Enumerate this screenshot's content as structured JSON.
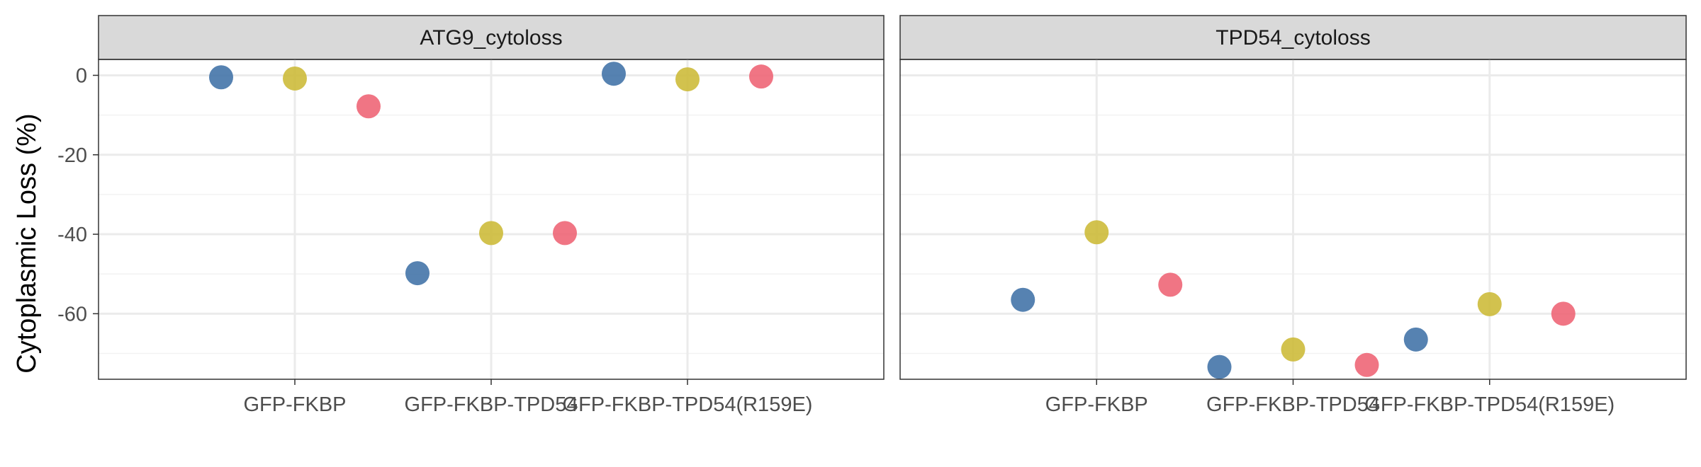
{
  "chart_data": {
    "type": "scatter",
    "ylabel": "Cytoplasmic Loss (%)",
    "xlabel": "",
    "categories": [
      "GFP-FKBP",
      "GFP-FKBP-TPD54",
      "GFP-FKBP-TPD54(R159E)"
    ],
    "y_ticks": [
      0,
      -20,
      -40,
      -60
    ],
    "y_tick_labels": [
      "0",
      "-20",
      "-40",
      "-60"
    ],
    "ylim": [
      -76.5,
      4
    ],
    "grid": true,
    "legend": "none",
    "colors": [
      "#4474a8",
      "#cdbb3b",
      "#ee6677"
    ],
    "panels": [
      {
        "title": "ATG9_cytoloss",
        "points": [
          {
            "category": "GFP-FKBP",
            "group": 0,
            "y": -0.5
          },
          {
            "category": "GFP-FKBP",
            "group": 1,
            "y": -0.8
          },
          {
            "category": "GFP-FKBP",
            "group": 2,
            "y": -7.8
          },
          {
            "category": "GFP-FKBP-TPD54",
            "group": 0,
            "y": -49.8
          },
          {
            "category": "GFP-FKBP-TPD54",
            "group": 1,
            "y": -39.7
          },
          {
            "category": "GFP-FKBP-TPD54",
            "group": 2,
            "y": -39.7
          },
          {
            "category": "GFP-FKBP-TPD54(R159E)",
            "group": 0,
            "y": 0.4
          },
          {
            "category": "GFP-FKBP-TPD54(R159E)",
            "group": 1,
            "y": -1.0
          },
          {
            "category": "GFP-FKBP-TPD54(R159E)",
            "group": 2,
            "y": -0.3
          }
        ]
      },
      {
        "title": "TPD54_cytoloss",
        "points": [
          {
            "category": "GFP-FKBP",
            "group": 0,
            "y": -56.5
          },
          {
            "category": "GFP-FKBP",
            "group": 1,
            "y": -39.5
          },
          {
            "category": "GFP-FKBP",
            "group": 2,
            "y": -52.7
          },
          {
            "category": "GFP-FKBP-TPD54",
            "group": 0,
            "y": -73.4
          },
          {
            "category": "GFP-FKBP-TPD54",
            "group": 1,
            "y": -69.0
          },
          {
            "category": "GFP-FKBP-TPD54",
            "group": 2,
            "y": -72.9
          },
          {
            "category": "GFP-FKBP-TPD54(R159E)",
            "group": 0,
            "y": -66.5
          },
          {
            "category": "GFP-FKBP-TPD54(R159E)",
            "group": 1,
            "y": -57.6
          },
          {
            "category": "GFP-FKBP-TPD54(R159E)",
            "group": 2,
            "y": -60.0
          }
        ]
      }
    ]
  }
}
